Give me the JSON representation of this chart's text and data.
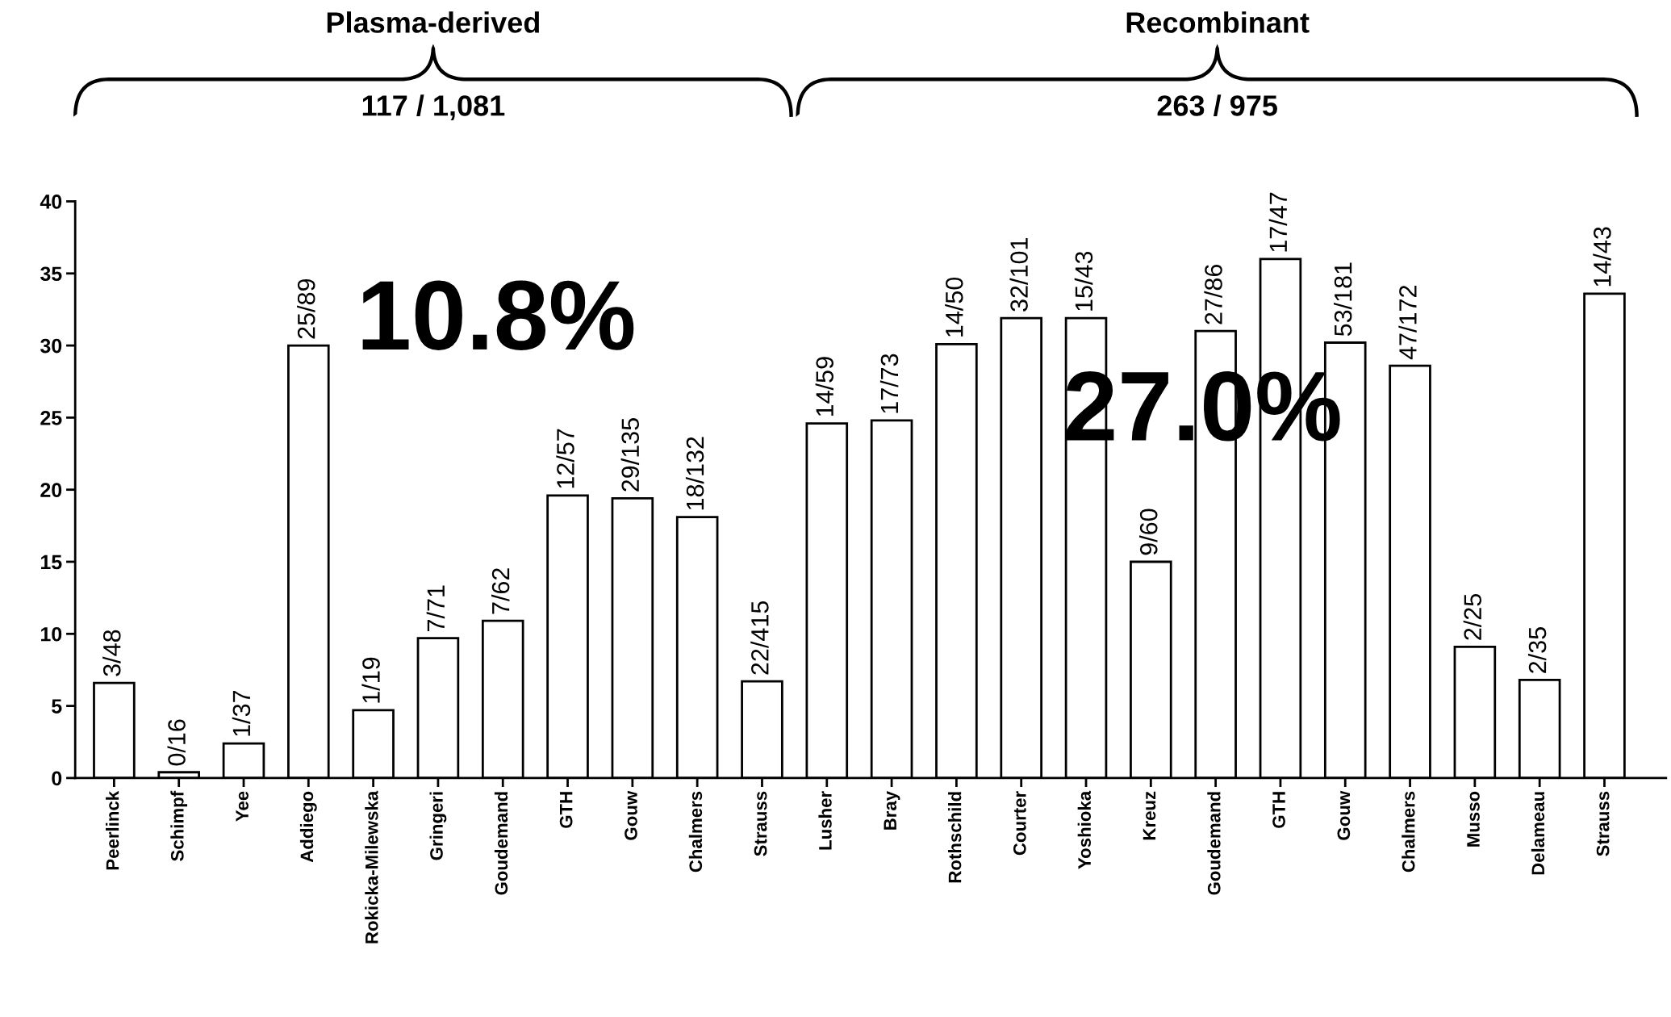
{
  "chart_data": {
    "type": "bar",
    "categories": [
      "Peerlinck",
      "Schimpf",
      "Yee",
      "Addiego",
      "Rokicka-Milewska",
      "Gringeri",
      "Goudemand",
      "GTH",
      "Gouw",
      "Chalmers",
      "Strauss",
      "Lusher",
      "Bray",
      "Rothschild",
      "Courter",
      "Yoshioka",
      "Kreuz",
      "Goudemand",
      "GTH",
      "Gouw",
      "Chalmers",
      "Musso",
      "Delameau",
      "Strauss"
    ],
    "values": [
      6.6,
      0.4,
      2.4,
      30.0,
      4.7,
      9.7,
      10.9,
      19.6,
      19.4,
      18.1,
      6.7,
      24.6,
      24.8,
      30.1,
      31.9,
      31.9,
      15.0,
      31.0,
      36.0,
      30.2,
      28.6,
      9.1,
      6.8,
      33.6
    ],
    "annotations": [
      "Plasma-derived",
      "117 / 1,081",
      "Recombinant",
      "263 / 975",
      "10.8%",
      "27.0%",
      "3/48",
      "0/16",
      "1/37",
      "25/89",
      "1/19",
      "7/71",
      "7/62",
      "12/57",
      "29/135",
      "18/132",
      "22/415",
      "14/59",
      "17/73",
      "14/50",
      "32/101",
      "15/43",
      "9/60",
      "27/86",
      "17/47",
      "53/181",
      "47/172",
      "2/25",
      "2/35",
      "14/43"
    ],
    "color": "#ffffff",
    "ylim": [
      0,
      40
    ],
    "yticks": [
      0,
      5,
      10,
      15,
      20,
      25,
      30,
      35,
      40
    ],
    "grid": false,
    "legend": false
  }
}
